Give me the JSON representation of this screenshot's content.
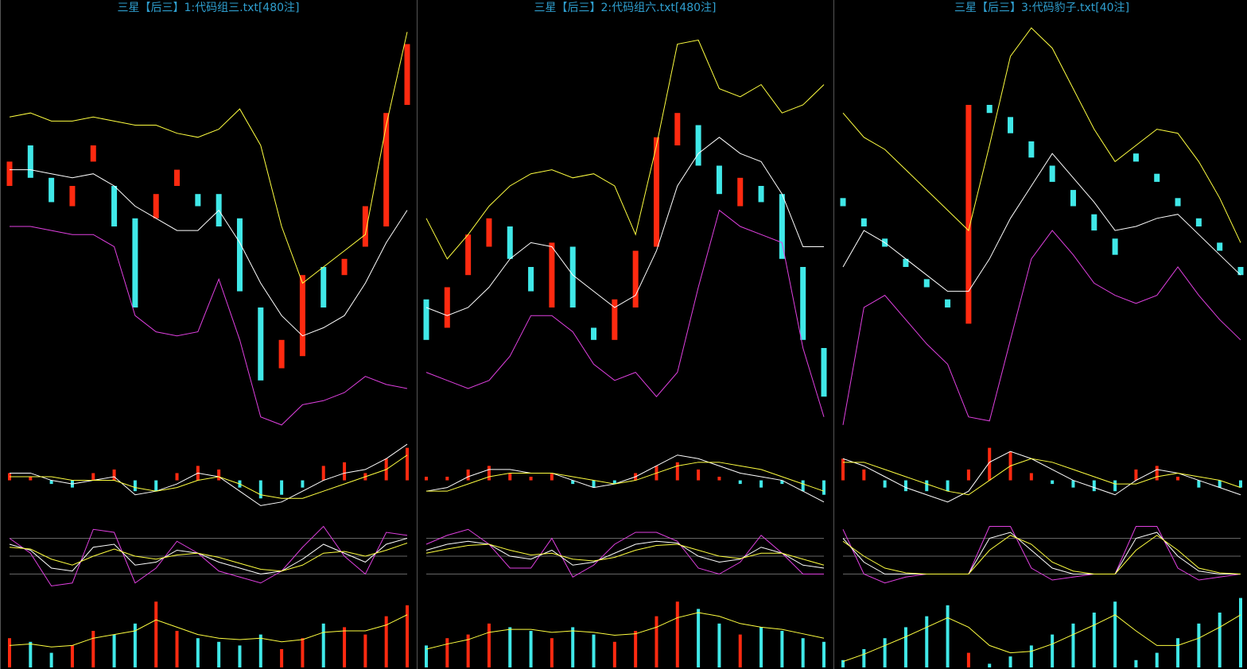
{
  "chart_data": [
    {
      "type": "stock",
      "title": "三星【后三】1:代码组三.txt[480注]",
      "up_color": "#ff2a10",
      "down_color": "#40e8e8",
      "upper_color": "#ffff40",
      "mid_color": "#ffffff",
      "lower_color": "#e040e0",
      "price": {
        "ylim": [
          0,
          100
        ],
        "open": [
          60,
          70,
          62,
          55,
          66,
          60,
          52,
          52,
          60,
          58,
          58,
          52,
          30,
          15,
          18,
          40,
          38,
          45,
          50,
          80
        ],
        "close": [
          66,
          62,
          56,
          60,
          70,
          50,
          30,
          58,
          64,
          55,
          50,
          34,
          12,
          22,
          38,
          30,
          42,
          55,
          78,
          95
        ],
        "upper": [
          77,
          78,
          76,
          76,
          77,
          76,
          75,
          75,
          73,
          72,
          74,
          79,
          70,
          50,
          36,
          40,
          44,
          48,
          75,
          98
        ],
        "mid": [
          64,
          64,
          63,
          62,
          63,
          60,
          55,
          52,
          49,
          49,
          54,
          46,
          36,
          28,
          23,
          25,
          28,
          36,
          46,
          54
        ],
        "lower": [
          50,
          50,
          49,
          48,
          48,
          45,
          28,
          24,
          23,
          24,
          37,
          22,
          3,
          1,
          6,
          7,
          9,
          13,
          11,
          10
        ]
      },
      "macd": {
        "ylim": [
          -10,
          12
        ],
        "hist": [
          2,
          1,
          -1,
          -2,
          2,
          3,
          -3,
          -3,
          2,
          4,
          3,
          -2,
          -5,
          -4,
          -2,
          4,
          5,
          2,
          6,
          9
        ],
        "dif": [
          2,
          2,
          0,
          -1,
          0,
          1,
          -4,
          -3,
          -1,
          2,
          1,
          -3,
          -7,
          -6,
          -3,
          0,
          2,
          3,
          6,
          10
        ],
        "dea": [
          1,
          1,
          1,
          0,
          0,
          0,
          -2,
          -3,
          -2,
          0,
          1,
          -1,
          -4,
          -5,
          -5,
          -3,
          -1,
          1,
          3,
          7
        ]
      },
      "kdj": {
        "ylim": [
          -10,
          110
        ],
        "levels": [
          20,
          50,
          80
        ],
        "k": [
          70,
          60,
          30,
          25,
          65,
          70,
          35,
          40,
          60,
          55,
          40,
          30,
          20,
          25,
          45,
          70,
          55,
          40,
          70,
          80
        ],
        "d": [
          65,
          62,
          45,
          35,
          50,
          62,
          50,
          45,
          52,
          55,
          48,
          38,
          28,
          25,
          35,
          55,
          58,
          50,
          60,
          72
        ],
        "j": [
          80,
          55,
          0,
          5,
          95,
          90,
          5,
          30,
          75,
          55,
          25,
          15,
          5,
          25,
          65,
          100,
          50,
          20,
          90,
          85
        ]
      },
      "volume": {
        "ylim": [
          0,
          100
        ],
        "values": [
          40,
          35,
          20,
          30,
          50,
          45,
          60,
          90,
          50,
          40,
          35,
          30,
          45,
          25,
          40,
          60,
          55,
          45,
          70,
          85
        ],
        "ma": [
          30,
          32,
          28,
          30,
          40,
          45,
          50,
          65,
          55,
          45,
          40,
          38,
          40,
          35,
          38,
          48,
          50,
          50,
          58,
          72
        ]
      }
    },
    {
      "type": "stock",
      "title": "三星【后三】2:代码组六.txt[480注]",
      "up_color": "#ff2a10",
      "down_color": "#40e8e8",
      "upper_color": "#ffff40",
      "mid_color": "#ffffff",
      "lower_color": "#e040e0",
      "price": {
        "ylim": [
          0,
          100
        ],
        "open": [
          32,
          25,
          38,
          45,
          50,
          40,
          30,
          45,
          25,
          22,
          30,
          45,
          70,
          75,
          65,
          55,
          60,
          58,
          40,
          20
        ],
        "close": [
          22,
          35,
          48,
          52,
          42,
          34,
          46,
          30,
          22,
          32,
          44,
          72,
          78,
          65,
          58,
          62,
          56,
          42,
          22,
          8
        ],
        "upper": [
          52,
          42,
          48,
          55,
          60,
          63,
          64,
          62,
          63,
          60,
          48,
          70,
          95,
          96,
          84,
          82,
          85,
          78,
          80,
          85
        ],
        "mid": [
          30,
          28,
          30,
          35,
          42,
          46,
          45,
          38,
          34,
          30,
          33,
          44,
          60,
          68,
          72,
          68,
          66,
          58,
          45,
          45
        ],
        "lower": [
          14,
          12,
          10,
          12,
          18,
          28,
          28,
          24,
          16,
          12,
          14,
          8,
          14,
          35,
          54,
          50,
          48,
          46,
          20,
          3
        ]
      },
      "macd": {
        "ylim": [
          -10,
          12
        ],
        "hist": [
          1,
          1,
          3,
          4,
          2,
          1,
          2,
          -1,
          -2,
          -1,
          2,
          4,
          5,
          3,
          1,
          -1,
          -2,
          -1,
          -3,
          -4
        ],
        "dif": [
          -3,
          -2,
          1,
          3,
          3,
          2,
          2,
          0,
          -2,
          -1,
          1,
          4,
          7,
          6,
          4,
          2,
          1,
          0,
          -3,
          -6
        ],
        "dea": [
          -3,
          -3,
          -1,
          1,
          2,
          2,
          2,
          1,
          0,
          -1,
          0,
          2,
          4,
          5,
          5,
          4,
          3,
          1,
          -1,
          -3
        ]
      },
      "kdj": {
        "ylim": [
          -10,
          110
        ],
        "levels": [
          20,
          50,
          80
        ],
        "k": [
          60,
          70,
          75,
          70,
          50,
          45,
          60,
          35,
          40,
          55,
          70,
          75,
          72,
          50,
          40,
          45,
          65,
          55,
          35,
          30
        ],
        "d": [
          55,
          62,
          68,
          70,
          60,
          52,
          55,
          45,
          42,
          48,
          60,
          68,
          70,
          60,
          50,
          46,
          55,
          55,
          45,
          35
        ],
        "j": [
          70,
          85,
          95,
          70,
          30,
          30,
          80,
          15,
          35,
          70,
          90,
          90,
          75,
          30,
          20,
          40,
          85,
          55,
          20,
          20
        ]
      },
      "volume": {
        "ylim": [
          0,
          100
        ],
        "values": [
          30,
          40,
          45,
          60,
          55,
          50,
          40,
          55,
          45,
          35,
          50,
          70,
          90,
          80,
          60,
          45,
          55,
          50,
          40,
          35
        ],
        "ma": [
          25,
          32,
          38,
          48,
          52,
          52,
          48,
          50,
          48,
          44,
          46,
          55,
          68,
          75,
          70,
          60,
          55,
          52,
          46,
          40
        ]
      }
    },
    {
      "type": "stock",
      "title": "三星【后三】3:代码豹子.txt[40注]",
      "up_color": "#ff2a10",
      "down_color": "#40e8e8",
      "upper_color": "#ffff40",
      "mid_color": "#ffffff",
      "lower_color": "#e040e0",
      "price": {
        "ylim": [
          0,
          100
        ],
        "open": [
          57,
          52,
          47,
          42,
          37,
          32,
          26,
          80,
          77,
          71,
          65,
          59,
          53,
          47,
          68,
          63,
          57,
          52,
          46,
          40
        ],
        "close": [
          55,
          50,
          45,
          40,
          35,
          30,
          80,
          78,
          73,
          67,
          61,
          55,
          49,
          43,
          66,
          61,
          55,
          50,
          44,
          38
        ],
        "upper": [
          78,
          72,
          69,
          64,
          59,
          54,
          49,
          70,
          92,
          99,
          94,
          84,
          74,
          66,
          70,
          74,
          73,
          66,
          57,
          46
        ],
        "mid": [
          40,
          49,
          46,
          42,
          38,
          34,
          34,
          42,
          52,
          60,
          68,
          62,
          56,
          49,
          50,
          52,
          53,
          48,
          43,
          38
        ],
        "lower": [
          1,
          30,
          33,
          27,
          21,
          16,
          3,
          2,
          22,
          42,
          49,
          43,
          36,
          33,
          31,
          33,
          40,
          33,
          27,
          22
        ]
      },
      "macd": {
        "ylim": [
          -10,
          12
        ],
        "hist": [
          6,
          3,
          -2,
          -3,
          -3,
          -3,
          3,
          9,
          8,
          2,
          -1,
          -2,
          -3,
          -3,
          3,
          4,
          1,
          -2,
          -2,
          -2
        ],
        "dif": [
          6,
          4,
          1,
          -2,
          -4,
          -6,
          -3,
          5,
          8,
          6,
          3,
          0,
          -2,
          -4,
          0,
          3,
          2,
          0,
          -2,
          -4
        ],
        "dea": [
          5,
          5,
          3,
          1,
          -1,
          -3,
          -4,
          0,
          4,
          6,
          5,
          3,
          1,
          -1,
          -1,
          1,
          2,
          1,
          0,
          -2
        ]
      },
      "kdj": {
        "ylim": [
          -10,
          110
        ],
        "levels": [
          20,
          50,
          80
        ],
        "k": [
          80,
          40,
          20,
          20,
          20,
          20,
          20,
          80,
          90,
          60,
          30,
          20,
          20,
          20,
          80,
          90,
          50,
          25,
          20,
          20
        ],
        "d": [
          75,
          50,
          30,
          22,
          20,
          20,
          20,
          60,
          85,
          70,
          40,
          25,
          20,
          20,
          60,
          85,
          60,
          30,
          22,
          20
        ],
        "j": [
          95,
          20,
          5,
          15,
          20,
          20,
          20,
          100,
          100,
          30,
          10,
          15,
          20,
          20,
          100,
          100,
          30,
          10,
          15,
          20
        ]
      },
      "volume": {
        "ylim": [
          0,
          100
        ],
        "values": [
          10,
          25,
          40,
          55,
          70,
          85,
          20,
          5,
          15,
          30,
          45,
          60,
          75,
          90,
          10,
          20,
          40,
          60,
          75,
          95
        ],
        "ma": [
          8,
          18,
          30,
          42,
          55,
          68,
          55,
          30,
          20,
          22,
          32,
          45,
          58,
          72,
          50,
          30,
          30,
          40,
          55,
          72
        ]
      }
    }
  ]
}
